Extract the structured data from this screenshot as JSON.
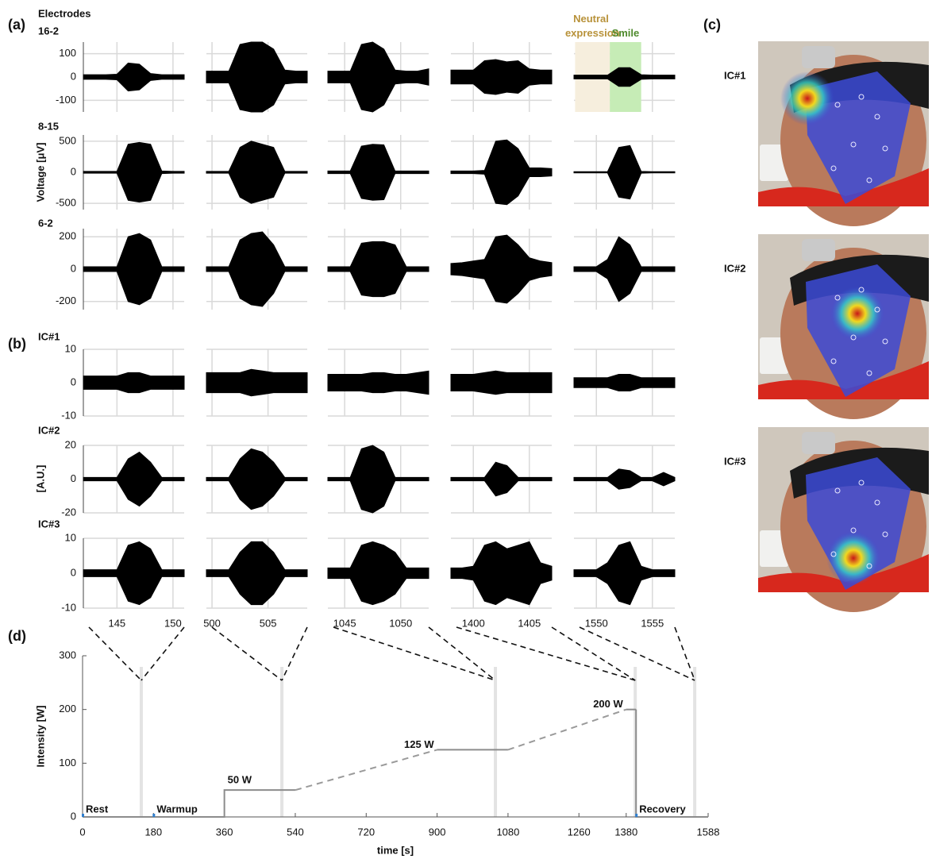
{
  "figure": {
    "panels": [
      "(a)",
      "(b)",
      "(c)",
      "(d)"
    ],
    "images": [
      {
        "label": "IC#1"
      },
      {
        "label": "IC#2"
      },
      {
        "label": "IC#3"
      }
    ]
  },
  "chart_data": [
    {
      "type": "envelope",
      "title": "Electrodes",
      "y_label": "Voltage [μV]",
      "color": "#000000",
      "grid_color": "#d9d9d9",
      "segments": [
        {
          "xlim": [
            142,
            151
          ],
          "xticks": [
            145,
            150
          ],
          "x": [
            142,
            143,
            144,
            145,
            146,
            147,
            148,
            149,
            150,
            151
          ]
        },
        {
          "xlim": [
            499.5,
            508.5
          ],
          "xticks": [
            500,
            505
          ],
          "x": [
            499.5,
            500.5,
            501.5,
            502.5,
            503.5,
            504.5,
            505.5,
            506.5,
            507.5,
            508.5
          ]
        },
        {
          "xlim": [
            1043.5,
            1052.5
          ],
          "xticks": [
            1045,
            1050
          ],
          "x": [
            1043.5,
            1044.5,
            1045.5,
            1046.5,
            1047.5,
            1048.5,
            1049.5,
            1050.5,
            1051.5,
            1052.5
          ]
        },
        {
          "xlim": [
            1398,
            1407
          ],
          "xticks": [
            1400,
            1405
          ],
          "x": [
            1398,
            1399,
            1400,
            1401,
            1402,
            1403,
            1404,
            1405,
            1406,
            1407
          ]
        },
        {
          "xlim": [
            1548,
            1557
          ],
          "xticks": [
            1550,
            1555
          ],
          "x": [
            1548,
            1549,
            1550,
            1551,
            1552,
            1553,
            1554,
            1555,
            1556,
            1557
          ]
        }
      ],
      "rows": [
        {
          "label": "16-2",
          "ylim": [
            -150,
            150
          ],
          "yticks": [
            -100,
            0,
            100
          ],
          "shaded": [
            {
              "text": "Neutral expression",
              "xlim": [
                1548.1,
                1551.2
              ],
              "color": "#f6eedd",
              "text_color": "#b8923a"
            },
            {
              "text": "Smile",
              "xlim": [
                1551.2,
                1554
              ],
              "color": "#c6ecb6",
              "text_color": "#4f8a2d"
            }
          ],
          "envelopes": [
            [
              10,
              10,
              10,
              12,
              60,
              55,
              15,
              10,
              10,
              10
            ],
            [
              25,
              25,
              25,
              140,
              150,
              150,
              120,
              30,
              25,
              25
            ],
            [
              25,
              25,
              25,
              140,
              150,
              120,
              30,
              25,
              25,
              35
            ],
            [
              30,
              30,
              30,
              70,
              75,
              65,
              70,
              35,
              30,
              30
            ],
            [
              8,
              8,
              8,
              8,
              40,
              40,
              10,
              8,
              8,
              8
            ]
          ]
        },
        {
          "label": "8-15",
          "ylim": [
            -600,
            600
          ],
          "yticks": [
            -500,
            0,
            500
          ],
          "envelopes": [
            [
              15,
              15,
              15,
              15,
              450,
              480,
              450,
              20,
              15,
              15
            ],
            [
              15,
              15,
              15,
              400,
              500,
              450,
              400,
              15,
              15,
              15
            ],
            [
              20,
              20,
              20,
              420,
              450,
              440,
              20,
              20,
              20,
              20
            ],
            [
              20,
              20,
              20,
              30,
              500,
              520,
              380,
              70,
              70,
              60
            ],
            [
              10,
              10,
              10,
              10,
              400,
              430,
              15,
              10,
              10,
              10
            ]
          ]
        },
        {
          "label": "6-2",
          "ylim": [
            -250,
            250
          ],
          "yticks": [
            -200,
            0,
            200
          ],
          "envelopes": [
            [
              15,
              15,
              15,
              15,
              200,
              220,
              180,
              15,
              15,
              15
            ],
            [
              15,
              15,
              15,
              180,
              220,
              230,
              150,
              15,
              15,
              15
            ],
            [
              15,
              15,
              15,
              160,
              170,
              170,
              150,
              15,
              15,
              15
            ],
            [
              35,
              40,
              50,
              60,
              200,
              210,
              150,
              70,
              50,
              40
            ],
            [
              15,
              15,
              15,
              60,
              200,
              150,
              15,
              15,
              15,
              15
            ]
          ]
        }
      ]
    },
    {
      "type": "envelope",
      "y_label": "[A.U.]",
      "color": "#000000",
      "grid_color": "#d9d9d9",
      "segments": [
        {
          "xlim": [
            142,
            151
          ],
          "xticks": [
            145,
            150
          ],
          "x": [
            142,
            143,
            144,
            145,
            146,
            147,
            148,
            149,
            150,
            151
          ]
        },
        {
          "xlim": [
            499.5,
            508.5
          ],
          "xticks": [
            500,
            505
          ],
          "x": [
            499.5,
            500.5,
            501.5,
            502.5,
            503.5,
            504.5,
            505.5,
            506.5,
            507.5,
            508.5
          ]
        },
        {
          "xlim": [
            1043.5,
            1052.5
          ],
          "xticks": [
            1045,
            1050
          ],
          "x": [
            1043.5,
            1044.5,
            1045.5,
            1046.5,
            1047.5,
            1048.5,
            1049.5,
            1050.5,
            1051.5,
            1052.5
          ]
        },
        {
          "xlim": [
            1398,
            1407
          ],
          "xticks": [
            1400,
            1405
          ],
          "x": [
            1398,
            1399,
            1400,
            1401,
            1402,
            1403,
            1404,
            1405,
            1406,
            1407
          ]
        },
        {
          "xlim": [
            1548,
            1557
          ],
          "xticks": [
            1550,
            1555
          ],
          "x": [
            1548,
            1549,
            1550,
            1551,
            1552,
            1553,
            1554,
            1555,
            1556,
            1557
          ]
        }
      ],
      "rows": [
        {
          "label": "IC#1",
          "ylim": [
            -10,
            10
          ],
          "yticks": [
            -10,
            0,
            10
          ],
          "envelopes": [
            [
              2,
              2,
              2,
              2,
              3,
              3,
              2,
              2,
              2,
              2
            ],
            [
              3,
              3,
              3,
              3,
              4,
              3.5,
              3,
              3,
              3,
              3
            ],
            [
              2.5,
              2.5,
              2.5,
              2.5,
              3,
              3,
              2.5,
              2.5,
              3,
              3.5
            ],
            [
              2.5,
              2.5,
              2.5,
              3,
              3.5,
              3,
              3,
              3,
              3,
              3
            ],
            [
              1.5,
              1.5,
              1.5,
              1.5,
              2.5,
              2.5,
              1.5,
              1.5,
              1.5,
              1.5
            ]
          ]
        },
        {
          "label": "IC#2",
          "ylim": [
            -20,
            20
          ],
          "yticks": [
            -20,
            0,
            20
          ],
          "envelopes": [
            [
              1,
              1,
              1,
              1,
              12,
              16,
              10,
              1,
              1,
              1
            ],
            [
              1,
              1,
              1,
              12,
              18,
              16,
              10,
              1,
              1,
              1
            ],
            [
              1,
              1,
              1,
              18,
              20,
              16,
              1,
              1,
              1,
              1
            ],
            [
              1,
              1,
              1,
              1,
              10,
              8,
              1,
              1,
              1,
              1
            ],
            [
              1,
              1,
              1,
              1,
              6,
              5,
              1,
              1,
              4,
              1
            ]
          ]
        },
        {
          "label": "IC#3",
          "ylim": [
            -10,
            10
          ],
          "yticks": [
            -10,
            0,
            10
          ],
          "envelopes": [
            [
              1,
              1,
              1,
              1,
              8,
              9,
              7,
              1,
              1,
              1
            ],
            [
              1,
              1,
              1,
              6,
              9,
              9,
              6,
              1,
              1,
              1
            ],
            [
              1.5,
              1.5,
              1.5,
              8,
              9,
              8,
              6,
              1.5,
              1.5,
              1.5
            ],
            [
              1.5,
              1.5,
              2,
              8,
              9,
              7,
              8,
              9,
              3,
              2
            ],
            [
              1,
              1,
              1,
              3,
              8,
              9,
              2,
              1,
              1,
              1
            ]
          ]
        }
      ]
    },
    {
      "type": "line",
      "x_label": "time [s]",
      "y_label": "Intensity [W]",
      "xlim": [
        0,
        1588
      ],
      "ylim": [
        0,
        300
      ],
      "xticks": [
        0,
        180,
        360,
        540,
        720,
        900,
        1080,
        1260,
        1380,
        1588
      ],
      "yticks": [
        0,
        100,
        200,
        300
      ],
      "highlights": [
        149,
        506,
        1048,
        1403,
        1554
      ],
      "highlight_color": "#e3e3e3",
      "phase_color": "#2f7fd0",
      "phases": [
        {
          "label": "Rest",
          "start": 0
        },
        {
          "label": "Warmup",
          "start": 180
        },
        {
          "label": "Recovery",
          "start": 1405
        }
      ],
      "series": [
        {
          "style": "solid",
          "color": "#8c8c8c",
          "x": [
            0,
            360,
            360,
            540
          ],
          "values": [
            0,
            0,
            50,
            50
          ],
          "label": "50 W"
        },
        {
          "style": "dashed",
          "color": "#9a9a9a",
          "x": [
            540,
            900
          ],
          "values": [
            50,
            125
          ]
        },
        {
          "style": "solid",
          "color": "#8c8c8c",
          "x": [
            900,
            1080
          ],
          "values": [
            125,
            125
          ],
          "label": "125 W"
        },
        {
          "style": "dashed",
          "color": "#9a9a9a",
          "x": [
            1080,
            1380
          ],
          "values": [
            125,
            200
          ]
        },
        {
          "style": "solid",
          "color": "#8c8c8c",
          "x": [
            1380,
            1405
          ],
          "values": [
            200,
            200
          ],
          "label": "200 W"
        },
        {
          "style": "solid",
          "color": "#8c8c8c",
          "x": [
            1405,
            1405,
            1588
          ],
          "values": [
            200,
            0,
            0
          ]
        }
      ]
    }
  ]
}
